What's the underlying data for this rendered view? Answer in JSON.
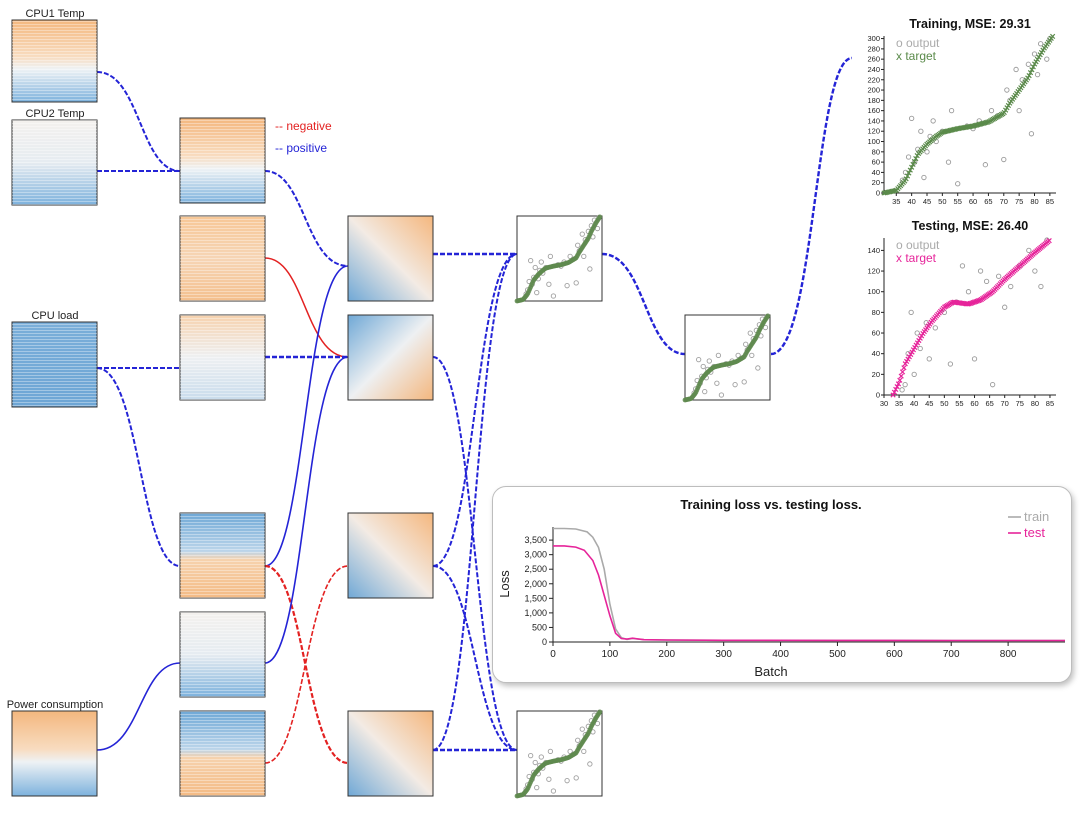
{
  "inputs": [
    {
      "name": "CPU1 Temp"
    },
    {
      "name": "CPU2 Temp"
    },
    {
      "name": "CPU load"
    },
    {
      "name": "Power consumption"
    }
  ],
  "legend": {
    "negative_label": "-- negative",
    "positive_label": "-- positive",
    "negative_color": "#e32222",
    "positive_color": "#2424d6"
  },
  "colors": {
    "warm": "#f6c08c",
    "cool": "#6fa8d6",
    "train": "#aaaaaa",
    "test": "#e6249a",
    "target_train": "#5a8a4a",
    "output_gray": "#9a9a9a"
  },
  "chart_data": [
    {
      "type": "scatter",
      "title": "Training, MSE: 29.31",
      "series": [
        {
          "name": "output"
        },
        {
          "name": "target"
        }
      ],
      "x_ticks": [
        35,
        40,
        45,
        50,
        55,
        60,
        65,
        70,
        75,
        80,
        85
      ],
      "y_ticks": [
        0,
        20,
        40,
        60,
        80,
        100,
        120,
        140,
        160,
        180,
        200,
        220,
        240,
        260,
        280,
        300
      ],
      "xlim": [
        31,
        87
      ],
      "ylim": [
        0,
        305
      ],
      "target_curve": [
        [
          31,
          0
        ],
        [
          35,
          5
        ],
        [
          38,
          25
        ],
        [
          40,
          50
        ],
        [
          42,
          75
        ],
        [
          45,
          95
        ],
        [
          48,
          110
        ],
        [
          50,
          118
        ],
        [
          55,
          125
        ],
        [
          60,
          130
        ],
        [
          65,
          138
        ],
        [
          70,
          155
        ],
        [
          72,
          175
        ],
        [
          75,
          200
        ],
        [
          78,
          225
        ],
        [
          80,
          250
        ],
        [
          83,
          280
        ],
        [
          86,
          305
        ]
      ],
      "output_points": [
        [
          37,
          25
        ],
        [
          38,
          40
        ],
        [
          39,
          70
        ],
        [
          40,
          145
        ],
        [
          41,
          60
        ],
        [
          42,
          85
        ],
        [
          43,
          120
        ],
        [
          44,
          30
        ],
        [
          45,
          80
        ],
        [
          46,
          110
        ],
        [
          47,
          140
        ],
        [
          48,
          100
        ],
        [
          50,
          120
        ],
        [
          52,
          60
        ],
        [
          53,
          160
        ],
        [
          55,
          18
        ],
        [
          58,
          130
        ],
        [
          60,
          125
        ],
        [
          62,
          140
        ],
        [
          64,
          55
        ],
        [
          66,
          160
        ],
        [
          68,
          150
        ],
        [
          70,
          65
        ],
        [
          71,
          200
        ],
        [
          72,
          180
        ],
        [
          74,
          240
        ],
        [
          75,
          160
        ],
        [
          76,
          220
        ],
        [
          78,
          250
        ],
        [
          79,
          115
        ],
        [
          80,
          270
        ],
        [
          81,
          230
        ],
        [
          82,
          290
        ],
        [
          84,
          260
        ],
        [
          85,
          300
        ]
      ]
    },
    {
      "type": "scatter",
      "title": "Testing, MSE: 26.40",
      "series": [
        {
          "name": "output"
        },
        {
          "name": "target"
        }
      ],
      "x_ticks": [
        30,
        35,
        40,
        45,
        50,
        55,
        60,
        65,
        70,
        75,
        80,
        85
      ],
      "y_ticks": [
        0,
        20,
        40,
        60,
        80,
        100,
        120,
        140
      ],
      "xlim": [
        30,
        87
      ],
      "ylim": [
        0,
        152
      ],
      "target_curve": [
        [
          33,
          0
        ],
        [
          35,
          12
        ],
        [
          37,
          30
        ],
        [
          40,
          45
        ],
        [
          43,
          60
        ],
        [
          46,
          72
        ],
        [
          50,
          85
        ],
        [
          53,
          90
        ],
        [
          58,
          88
        ],
        [
          62,
          92
        ],
        [
          66,
          100
        ],
        [
          70,
          112
        ],
        [
          75,
          125
        ],
        [
          80,
          138
        ],
        [
          85,
          150
        ]
      ],
      "output_points": [
        [
          36,
          5
        ],
        [
          37,
          10
        ],
        [
          38,
          40
        ],
        [
          39,
          80
        ],
        [
          40,
          20
        ],
        [
          41,
          60
        ],
        [
          42,
          45
        ],
        [
          44,
          70
        ],
        [
          45,
          35
        ],
        [
          47,
          65
        ],
        [
          50,
          80
        ],
        [
          52,
          30
        ],
        [
          54,
          90
        ],
        [
          56,
          125
        ],
        [
          58,
          100
        ],
        [
          60,
          35
        ],
        [
          62,
          120
        ],
        [
          64,
          110
        ],
        [
          66,
          10
        ],
        [
          68,
          115
        ],
        [
          70,
          85
        ],
        [
          72,
          105
        ],
        [
          75,
          125
        ],
        [
          78,
          140
        ],
        [
          80,
          120
        ],
        [
          82,
          105
        ],
        [
          84,
          150
        ]
      ]
    },
    {
      "type": "line",
      "title": "Training loss vs. testing loss.",
      "xlabel": "Batch",
      "ylabel": "Loss",
      "x_ticks": [
        0,
        100,
        200,
        300,
        400,
        500,
        600,
        700,
        800
      ],
      "y_ticks": [
        0,
        500,
        1000,
        1500,
        2000,
        2500,
        3000,
        3500
      ],
      "y_tick_labels": [
        "0",
        "500",
        "1,000",
        "1,500",
        "2,000",
        "2,500",
        "3,000",
        "3,500"
      ],
      "xlim": [
        0,
        900
      ],
      "ylim": [
        0,
        3950
      ],
      "series": [
        {
          "name": "train",
          "x": [
            0,
            20,
            40,
            60,
            70,
            80,
            90,
            100,
            110,
            120,
            130,
            140,
            160,
            200,
            300,
            500,
            700,
            900
          ],
          "values": [
            3900,
            3900,
            3880,
            3780,
            3600,
            3250,
            2500,
            1300,
            450,
            150,
            90,
            120,
            80,
            70,
            60,
            55,
            50,
            50
          ]
        },
        {
          "name": "test",
          "x": [
            0,
            20,
            40,
            55,
            70,
            80,
            90,
            100,
            110,
            120,
            130,
            140,
            160,
            200,
            300,
            500,
            700,
            900
          ],
          "values": [
            3300,
            3300,
            3260,
            3150,
            2800,
            2300,
            1600,
            900,
            300,
            120,
            100,
            130,
            80,
            70,
            60,
            55,
            50,
            50
          ]
        }
      ]
    }
  ]
}
